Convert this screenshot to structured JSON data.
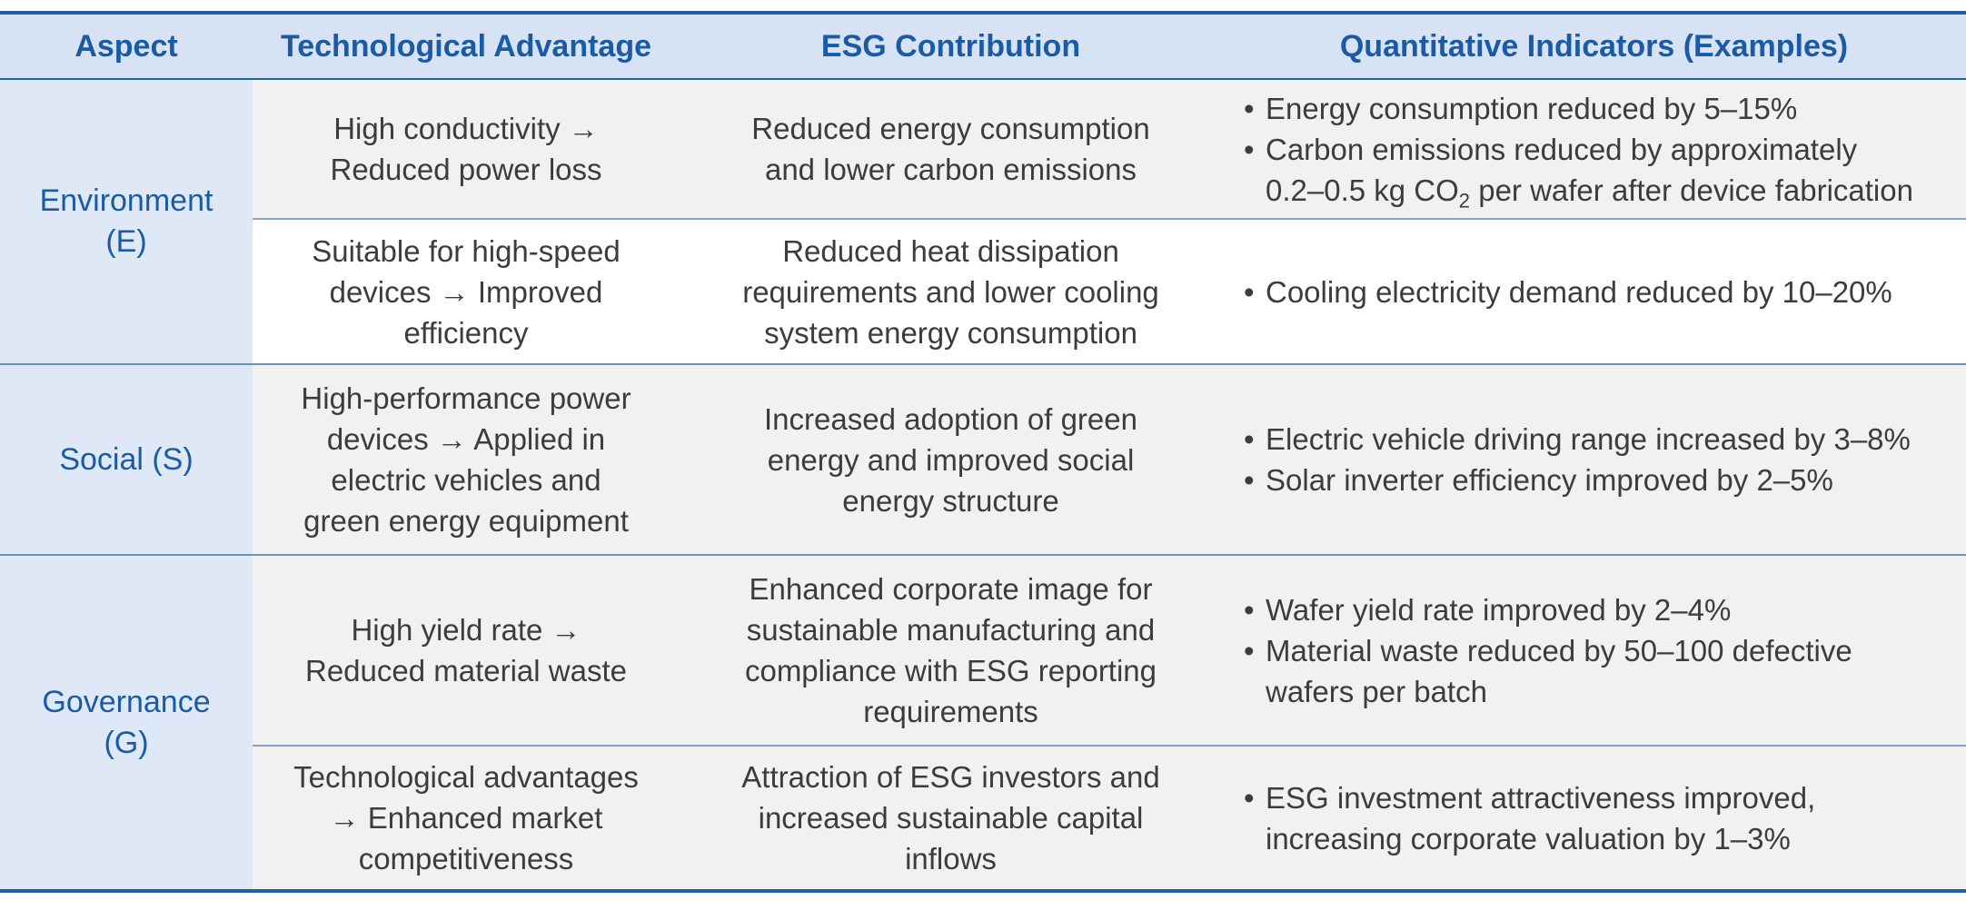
{
  "header": {
    "aspect": "Aspect",
    "tech": "Technological Advantage",
    "esg": "ESG Contribution",
    "quant": "Quantitative Indicators (Examples)"
  },
  "env": {
    "aspect": [
      "Environment",
      "(E)"
    ],
    "rows": [
      {
        "tech": [
          "High conductivity →",
          "Reduced power loss"
        ],
        "esg": [
          "Reduced energy consumption",
          "and lower carbon emissions"
        ],
        "quant": [
          "Energy consumption reduced by 5–15%",
          "Carbon emissions reduced by approximately",
          "0.2–0.5 kg CO",
          "2",
          " per wafer after device fabrication"
        ]
      },
      {
        "tech": [
          "Suitable for high-speed",
          "devices → Improved",
          "efficiency"
        ],
        "esg": [
          "Reduced heat dissipation",
          "requirements and lower cooling",
          "system energy consumption"
        ],
        "quant": [
          "Cooling electricity demand reduced by 10–20%"
        ]
      }
    ]
  },
  "social": {
    "aspect": [
      "Social (S)"
    ],
    "rows": [
      {
        "tech": [
          "High-performance power",
          "devices → Applied in",
          "electric vehicles and",
          "green energy equipment"
        ],
        "esg": [
          "Increased adoption of green",
          "energy and improved social",
          "energy structure"
        ],
        "quant": [
          "Electric vehicle driving range increased by 3–8%",
          "Solar inverter efficiency improved by 2–5%"
        ]
      }
    ]
  },
  "gov": {
    "aspect": [
      "Governance",
      "(G)"
    ],
    "rows": [
      {
        "tech": [
          "High yield rate →",
          "Reduced material waste"
        ],
        "esg": [
          "Enhanced corporate image for",
          "sustainable manufacturing and",
          "compliance with ESG reporting",
          "requirements"
        ],
        "quant": [
          "Wafer yield rate improved by 2–4%",
          "Material waste reduced by 50–100 defective",
          "wafers per batch"
        ]
      },
      {
        "tech": [
          "Technological advantages",
          "→ Enhanced market",
          "competitiveness"
        ],
        "esg": [
          "Attraction of ESG investors and",
          "increased sustainable capital",
          "inflows"
        ],
        "quant": [
          "ESG investment attractiveness improved,",
          "increasing corporate valuation by 1–3%"
        ]
      }
    ]
  },
  "colors": {
    "accent": "#1f5fa3",
    "header_bg": "#d7e3f5",
    "aspect_bg": "#dfe8f6",
    "row_gray": "#f1f1f1",
    "row_white": "#ffffff",
    "text": "#3c3c3c"
  }
}
